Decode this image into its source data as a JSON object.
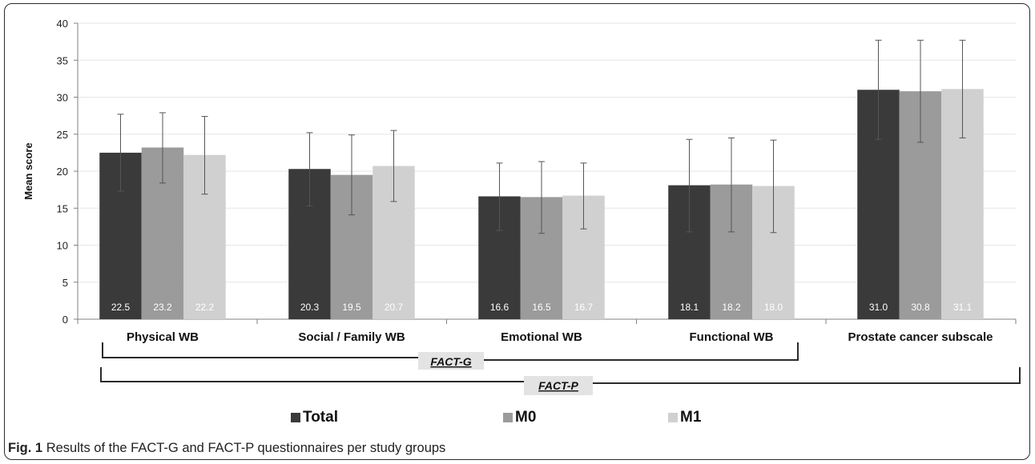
{
  "caption": {
    "label": "Fig. 1",
    "text": "Results of the FACT-G and FACT-P questionnaires per study groups"
  },
  "brackets": {
    "fact_g": "FACT-G",
    "fact_p": "FACT-P"
  },
  "colors": {
    "Total": "#3a3a3a",
    "M0": "#9b9b9b",
    "M1": "#d0d0d0",
    "grid": "#e6e6e6",
    "axis": "#808080",
    "error_bar": "#555555"
  },
  "chart_data": {
    "type": "bar",
    "title": "",
    "xlabel": "",
    "ylabel": "Mean score",
    "ylim": [
      0,
      40
    ],
    "yticks": [
      0,
      5,
      10,
      15,
      20,
      25,
      30,
      35,
      40
    ],
    "grid": true,
    "legend_position": "bottom",
    "categories": [
      "Physical WB",
      "Social / Family  WB",
      "Emotional WB",
      "Functional WB",
      "Prostate cancer subscale"
    ],
    "series": [
      {
        "name": "Total",
        "values": [
          22.5,
          20.3,
          16.6,
          18.1,
          31.0
        ],
        "labels": [
          "22.5",
          "20.3",
          "16.6",
          "18.1",
          "31.0"
        ],
        "err_low": [
          17.3,
          15.3,
          12.0,
          11.8,
          24.3
        ],
        "err_high": [
          27.7,
          25.2,
          21.1,
          24.3,
          37.7
        ]
      },
      {
        "name": "M0",
        "values": [
          23.2,
          19.5,
          16.5,
          18.2,
          30.8
        ],
        "labels": [
          "23.2",
          "19.5",
          "16.5",
          "18.2",
          "30.8"
        ],
        "err_low": [
          18.4,
          14.1,
          11.6,
          11.8,
          23.9
        ],
        "err_high": [
          27.9,
          24.9,
          21.3,
          24.5,
          37.7
        ]
      },
      {
        "name": "M1",
        "values": [
          22.2,
          20.7,
          16.7,
          18.0,
          31.1
        ],
        "labels": [
          "22.2",
          "20.7",
          "16.7",
          "18.0",
          "31.1"
        ],
        "err_low": [
          16.9,
          15.9,
          12.2,
          11.7,
          24.5
        ],
        "err_high": [
          27.4,
          25.5,
          21.1,
          24.2,
          37.7
        ]
      }
    ]
  }
}
